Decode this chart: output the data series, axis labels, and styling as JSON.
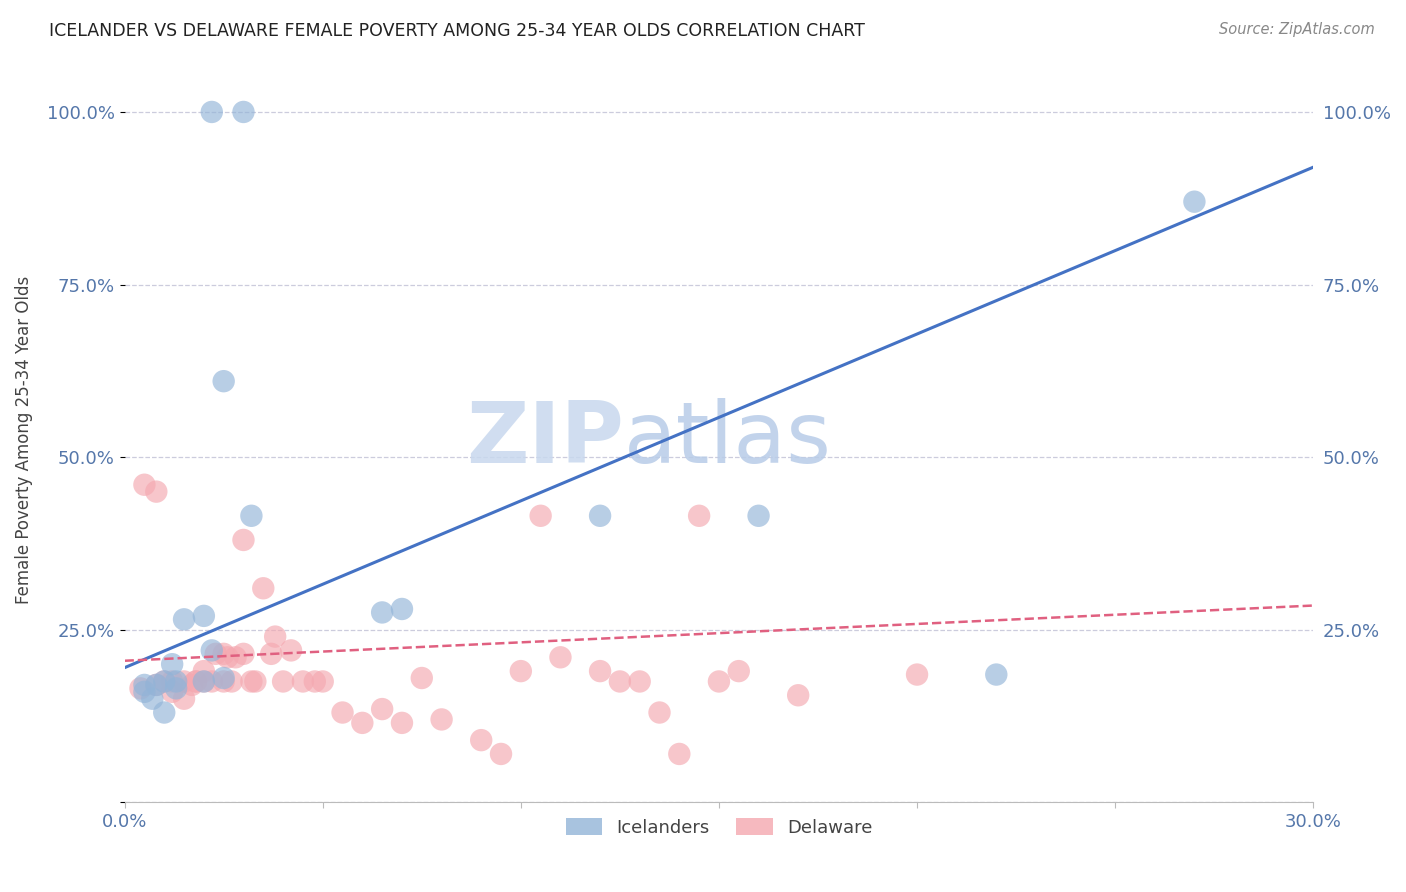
{
  "title": "ICELANDER VS DELAWARE FEMALE POVERTY AMONG 25-34 YEAR OLDS CORRELATION CHART",
  "source": "Source: ZipAtlas.com",
  "ylabel": "Female Poverty Among 25-34 Year Olds",
  "xlim": [
    0.0,
    0.3
  ],
  "ylim": [
    0.0,
    1.05
  ],
  "yticks": [
    0.0,
    0.25,
    0.5,
    0.75,
    1.0
  ],
  "ytick_labels": [
    "",
    "25.0%",
    "50.0%",
    "75.0%",
    "100.0%"
  ],
  "xticks": [
    0.0,
    0.05,
    0.1,
    0.15,
    0.2,
    0.25,
    0.3
  ],
  "xtick_labels": [
    "0.0%",
    "",
    "",
    "",
    "",
    "",
    "30.0%"
  ],
  "blue_color": "#92B4D8",
  "pink_color": "#F4A8B0",
  "blue_line_color": "#4472C4",
  "pink_line_color": "#E06080",
  "watermark_zip": "ZIP",
  "watermark_atlas": "atlas",
  "title_color": "#222222",
  "axis_color": "#5577AA",
  "grid_color": "#CCCCDD",
  "blue_line_x": [
    0.0,
    0.3
  ],
  "blue_line_y": [
    0.195,
    0.92
  ],
  "pink_line_x": [
    0.0,
    0.3
  ],
  "pink_line_y": [
    0.205,
    0.285
  ],
  "icelanders_x": [
    0.022,
    0.03,
    0.12,
    0.16,
    0.025,
    0.032,
    0.02,
    0.015,
    0.012,
    0.01,
    0.022,
    0.025,
    0.065,
    0.07,
    0.02,
    0.013,
    0.008,
    0.005,
    0.007,
    0.01,
    0.22,
    0.27,
    0.013,
    0.005
  ],
  "icelanders_y": [
    1.0,
    1.0,
    0.415,
    0.415,
    0.61,
    0.415,
    0.27,
    0.265,
    0.2,
    0.175,
    0.22,
    0.18,
    0.275,
    0.28,
    0.175,
    0.175,
    0.17,
    0.17,
    0.15,
    0.13,
    0.185,
    0.87,
    0.165,
    0.16
  ],
  "delaware_x": [
    0.004,
    0.008,
    0.01,
    0.012,
    0.015,
    0.017,
    0.018,
    0.02,
    0.022,
    0.023,
    0.025,
    0.026,
    0.027,
    0.028,
    0.03,
    0.03,
    0.032,
    0.033,
    0.035,
    0.037,
    0.038,
    0.04,
    0.042,
    0.045,
    0.048,
    0.05,
    0.055,
    0.06,
    0.065,
    0.07,
    0.075,
    0.08,
    0.09,
    0.095,
    0.1,
    0.105,
    0.11,
    0.12,
    0.125,
    0.13,
    0.135,
    0.14,
    0.145,
    0.15,
    0.005,
    0.008,
    0.012,
    0.015,
    0.018,
    0.02,
    0.025,
    0.155,
    0.17,
    0.2
  ],
  "delaware_y": [
    0.165,
    0.17,
    0.175,
    0.175,
    0.175,
    0.17,
    0.175,
    0.175,
    0.175,
    0.215,
    0.215,
    0.21,
    0.175,
    0.21,
    0.38,
    0.215,
    0.175,
    0.175,
    0.31,
    0.215,
    0.24,
    0.175,
    0.22,
    0.175,
    0.175,
    0.175,
    0.13,
    0.115,
    0.135,
    0.115,
    0.18,
    0.12,
    0.09,
    0.07,
    0.19,
    0.415,
    0.21,
    0.19,
    0.175,
    0.175,
    0.13,
    0.07,
    0.415,
    0.175,
    0.46,
    0.45,
    0.16,
    0.15,
    0.175,
    0.19,
    0.175,
    0.19,
    0.155,
    0.185
  ]
}
